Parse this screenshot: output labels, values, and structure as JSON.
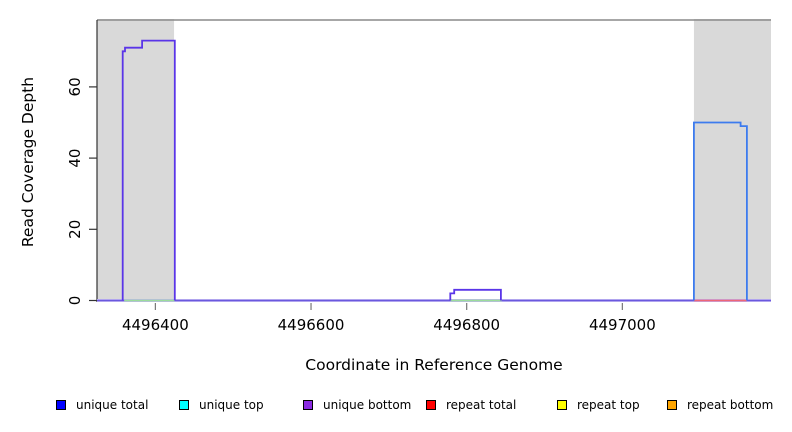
{
  "figure": {
    "x_axis_title": "Coordinate in Reference Genome",
    "y_axis_title": "Read Coverage Depth"
  },
  "chart_data": {
    "type": "line",
    "subtype": "step-coverage-plot",
    "title": "",
    "xlabel": "Coordinate in Reference Genome",
    "ylabel": "Read Coverage Depth",
    "xlim": [
      4496325,
      4497191
    ],
    "ylim": [
      0,
      79
    ],
    "x_ticks": [
      4496400,
      4496600,
      4496800,
      4497000
    ],
    "y_ticks": [
      0,
      20,
      40,
      60
    ],
    "grid": false,
    "legend_position": "bottom",
    "colors": {
      "shaded_band": "#d9d9d9",
      "plot_border": "#8a8a8a",
      "axis": "#333333",
      "baseline_halo": "#c8bdf4",
      "baseline_core": "#6a58de",
      "zero_top_strand": "#9cdc9c",
      "zero_repeat": "#ee6677",
      "unique_bottom_line": "#5a35e8",
      "unique_total_line": "#3d7bee"
    },
    "highlight_regions": [
      {
        "name": "left-shaded-region",
        "x0": 4496325,
        "x1": 4496424
      },
      {
        "name": "right-shaded-region",
        "x0": 4497092,
        "x1": 4497191
      }
    ],
    "series": [
      {
        "name": "baseline-halo",
        "color": "#c8bdf4",
        "width": 3,
        "points": [
          [
            4496325,
            0
          ],
          [
            4497191,
            0
          ]
        ]
      },
      {
        "name": "baseline-unique-zero",
        "color": "#6a58de",
        "width": 1.5,
        "points": [
          [
            4496325,
            0
          ],
          [
            4497191,
            0
          ]
        ]
      },
      {
        "name": "zero-segment-left-green",
        "color": "#9cdc9c",
        "width": 1.8,
        "points": [
          [
            4496360,
            0
          ],
          [
            4496425,
            0
          ]
        ]
      },
      {
        "name": "zero-segment-mid-green",
        "color": "#9cdc9c",
        "width": 1.8,
        "points": [
          [
            4496779,
            0
          ],
          [
            4496845,
            0
          ]
        ]
      },
      {
        "name": "zero-segment-right-red",
        "color": "#ee6677",
        "width": 1.8,
        "points": [
          [
            4497092,
            0
          ],
          [
            4497160,
            0
          ]
        ]
      },
      {
        "name": "unique-bottom-peak-left",
        "color": "#5a35e8",
        "width": 1.8,
        "points": [
          [
            4496358,
            0
          ],
          [
            4496358,
            70
          ],
          [
            4496361,
            70
          ],
          [
            4496361,
            71
          ],
          [
            4496383,
            71
          ],
          [
            4496383,
            73
          ],
          [
            4496425,
            73
          ],
          [
            4496425,
            0
          ]
        ]
      },
      {
        "name": "unique-bottom-bump-mid",
        "color": "#5a35e8",
        "width": 1.8,
        "points": [
          [
            4496779,
            0
          ],
          [
            4496779,
            2
          ],
          [
            4496784,
            2
          ],
          [
            4496784,
            3
          ],
          [
            4496844,
            3
          ],
          [
            4496844,
            0
          ]
        ]
      },
      {
        "name": "unique-total-peak-right",
        "color": "#3d7bee",
        "width": 1.8,
        "points": [
          [
            4497092,
            0
          ],
          [
            4497092,
            50
          ],
          [
            4497152,
            50
          ],
          [
            4497152,
            49
          ],
          [
            4497160,
            49
          ],
          [
            4497160,
            0
          ]
        ]
      }
    ],
    "legend": [
      {
        "label": "unique total",
        "color": "#0000ff"
      },
      {
        "label": "unique top",
        "color": "#00ffff"
      },
      {
        "label": "unique bottom",
        "color": "#8b2be2"
      },
      {
        "label": "repeat total",
        "color": "#ff0000"
      },
      {
        "label": "repeat top",
        "color": "#ffff00"
      },
      {
        "label": "repeat bottom",
        "color": "#ffa500"
      }
    ]
  }
}
